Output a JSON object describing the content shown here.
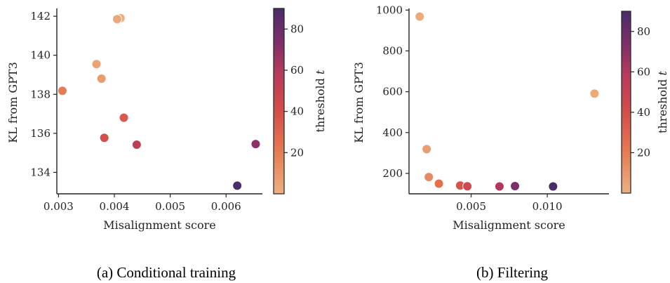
{
  "chart_data": [
    {
      "type": "scatter",
      "caption": "(a) Conditional training",
      "xlabel": "Misalignment score",
      "ylabel": "KL from GPT3",
      "xlim": [
        0.00297,
        0.00665
      ],
      "ylim": [
        132.9,
        142.4
      ],
      "xticks": [
        0.003,
        0.004,
        0.005,
        0.006
      ],
      "xtick_labels": [
        "0.003",
        "0.004",
        "0.005",
        "0.006"
      ],
      "yticks": [
        134,
        136,
        138,
        140,
        142
      ],
      "ytick_labels": [
        "134",
        "136",
        "138",
        "140",
        "142"
      ],
      "colorbar": {
        "label": "threshold t",
        "range": [
          0,
          90
        ],
        "ticks": [
          20,
          40,
          60,
          80
        ],
        "tick_labels": [
          "20",
          "40",
          "60",
          "80"
        ]
      },
      "grid": false,
      "points": [
        {
          "x": 0.00411,
          "y": 141.9,
          "t": 1
        },
        {
          "x": 0.00405,
          "y": 141.85,
          "t": 3
        },
        {
          "x": 0.00368,
          "y": 139.55,
          "t": 5
        },
        {
          "x": 0.00377,
          "y": 138.8,
          "t": 8
        },
        {
          "x": 0.00307,
          "y": 138.18,
          "t": 20
        },
        {
          "x": 0.00417,
          "y": 136.8,
          "t": 35
        },
        {
          "x": 0.00382,
          "y": 135.77,
          "t": 40
        },
        {
          "x": 0.0044,
          "y": 135.42,
          "t": 55
        },
        {
          "x": 0.00653,
          "y": 135.45,
          "t": 70
        },
        {
          "x": 0.0062,
          "y": 133.32,
          "t": 90
        }
      ]
    },
    {
      "type": "scatter",
      "caption": "(b) Filtering",
      "xlabel": "Misalignment score",
      "ylabel": "KL from GPT3",
      "xlim": [
        0.00092,
        0.01405
      ],
      "ylim": [
        100,
        1008
      ],
      "xticks": [
        0.005,
        0.01
      ],
      "xtick_labels": [
        "0.005",
        "0.010"
      ],
      "yticks": [
        200,
        400,
        600,
        800,
        1000
      ],
      "ytick_labels": [
        "200",
        "400",
        "600",
        "800",
        "1000"
      ],
      "colorbar": {
        "label": "threshold t",
        "range": [
          0,
          90
        ],
        "ticks": [
          20,
          40,
          60,
          80
        ],
        "tick_labels": [
          "20",
          "40",
          "60",
          "80"
        ]
      },
      "grid": false,
      "points": [
        {
          "x": 0.00162,
          "y": 968,
          "t": 2
        },
        {
          "x": 0.0131,
          "y": 591,
          "t": 3
        },
        {
          "x": 0.00208,
          "y": 319,
          "t": 8
        },
        {
          "x": 0.00222,
          "y": 182,
          "t": 15
        },
        {
          "x": 0.00288,
          "y": 150,
          "t": 25
        },
        {
          "x": 0.00428,
          "y": 141,
          "t": 38
        },
        {
          "x": 0.00475,
          "y": 137,
          "t": 45
        },
        {
          "x": 0.00686,
          "y": 136,
          "t": 60
        },
        {
          "x": 0.00788,
          "y": 138,
          "t": 75
        },
        {
          "x": 0.01038,
          "y": 136,
          "t": 90
        }
      ]
    }
  ]
}
